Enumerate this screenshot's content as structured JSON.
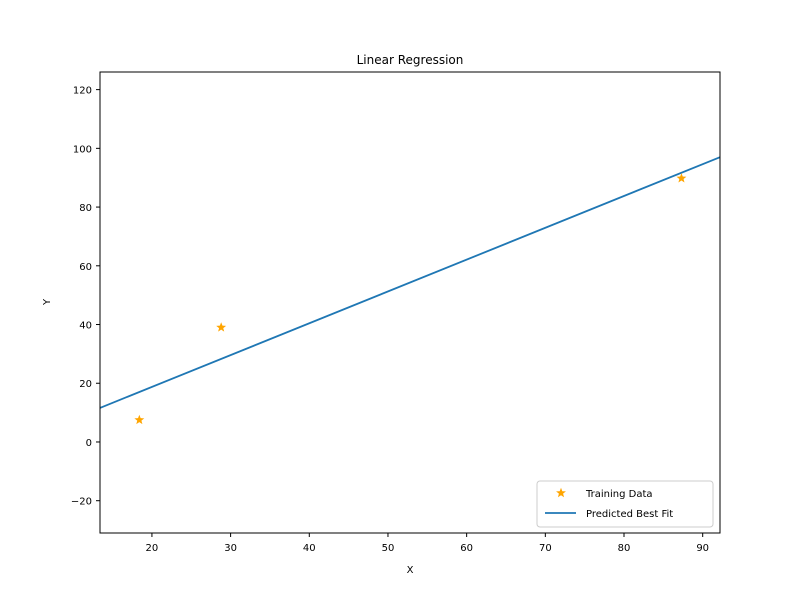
{
  "chart_data": {
    "type": "scatter",
    "title": "Linear Regression",
    "xlabel": "X",
    "ylabel": "Y",
    "xlim": [
      13.4,
      92.2
    ],
    "ylim": [
      -31,
      126
    ],
    "xticks": [
      20,
      30,
      40,
      50,
      60,
      70,
      80,
      90
    ],
    "yticks": [
      -20,
      0,
      20,
      40,
      60,
      80,
      100,
      120
    ],
    "grid": false,
    "legend_position": "lower-right",
    "series": [
      {
        "name": "Training Data",
        "kind": "scatter",
        "marker": "star",
        "color": "#ffa500",
        "x": [
          18.4,
          28.8,
          87.3
        ],
        "y": [
          7.5,
          39.0,
          89.8
        ]
      },
      {
        "name": "Predicted Best Fit",
        "kind": "line",
        "color": "#1f77b4",
        "x": [
          13.4,
          92.2
        ],
        "y": [
          11.6,
          97.0
        ]
      }
    ]
  }
}
